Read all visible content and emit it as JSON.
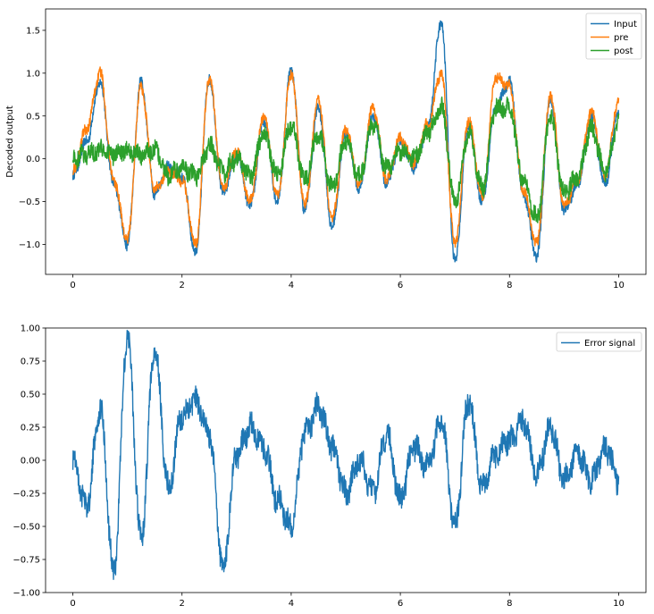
{
  "chart_data": [
    {
      "type": "line",
      "ylabel": "Decoded output",
      "xlabel": "",
      "xlim": [
        -0.5,
        10.5
      ],
      "ylim": [
        -1.35,
        1.75
      ],
      "xticks": [
        0,
        2,
        4,
        6,
        8,
        10
      ],
      "xtick_labels": [
        "0",
        "2",
        "4",
        "6",
        "8",
        "10"
      ],
      "yticks": [
        -1.0,
        -0.5,
        0.0,
        0.5,
        1.0,
        1.5
      ],
      "ytick_labels": [
        "−1.0",
        "−0.5",
        "0.0",
        "0.5",
        "1.0",
        "1.5"
      ],
      "grid": false,
      "legend": "top-right",
      "x": [
        0,
        0.25,
        0.5,
        0.75,
        1,
        1.25,
        1.5,
        1.75,
        2,
        2.25,
        2.5,
        2.75,
        3,
        3.25,
        3.5,
        3.75,
        4,
        4.25,
        4.5,
        4.75,
        5,
        5.25,
        5.5,
        5.75,
        6,
        6.25,
        6.5,
        6.75,
        7,
        7.25,
        7.5,
        7.75,
        8,
        8.25,
        8.5,
        8.75,
        9,
        9.25,
        9.5,
        9.75,
        10
      ],
      "series": [
        {
          "name": "Input",
          "color": "#1f77b4",
          "values": [
            -0.2,
            0.2,
            0.9,
            -0.3,
            -1.0,
            0.9,
            -0.4,
            -0.1,
            -0.2,
            -1.1,
            0.95,
            -0.4,
            0.05,
            -0.55,
            0.45,
            -0.5,
            1.05,
            -0.6,
            0.6,
            -0.8,
            0.3,
            -0.35,
            0.5,
            -0.3,
            0.2,
            -0.1,
            0.35,
            1.6,
            -1.2,
            0.4,
            -0.5,
            0.6,
            0.9,
            -0.4,
            -1.15,
            0.7,
            -0.6,
            -0.3,
            0.5,
            -0.3,
            0.55
          ]
        },
        {
          "name": "pre",
          "color": "#ff7f0e",
          "values": [
            -0.15,
            0.35,
            1.0,
            -0.25,
            -0.95,
            0.85,
            -0.35,
            -0.15,
            -0.25,
            -1.0,
            0.95,
            -0.35,
            0.1,
            -0.5,
            0.5,
            -0.45,
            1.0,
            -0.55,
            0.7,
            -0.7,
            0.35,
            -0.3,
            0.6,
            -0.25,
            0.25,
            -0.05,
            0.4,
            1.0,
            -1.0,
            0.45,
            -0.45,
            0.95,
            0.85,
            -0.35,
            -1.0,
            0.75,
            -0.55,
            -0.25,
            0.55,
            -0.2,
            0.7
          ]
        },
        {
          "name": "post",
          "color": "#2ca02c",
          "values": [
            0.0,
            0.05,
            0.1,
            0.05,
            0.1,
            0.05,
            0.1,
            -0.2,
            -0.1,
            -0.2,
            0.15,
            -0.15,
            0.0,
            -0.2,
            0.3,
            -0.2,
            0.4,
            -0.25,
            0.3,
            -0.35,
            0.2,
            -0.2,
            0.4,
            -0.1,
            0.1,
            0.0,
            0.3,
            0.6,
            -0.5,
            0.3,
            -0.35,
            0.6,
            0.6,
            -0.25,
            -0.7,
            0.5,
            -0.4,
            -0.2,
            0.35,
            -0.15,
            0.45
          ]
        }
      ]
    },
    {
      "type": "line",
      "xlabel": "",
      "ylabel": "",
      "xlim": [
        -0.5,
        10.5
      ],
      "ylim": [
        -1.0,
        1.0
      ],
      "xticks": [
        0,
        2,
        4,
        6,
        8,
        10
      ],
      "xtick_labels": [
        "0",
        "2",
        "4",
        "6",
        "8",
        "10"
      ],
      "yticks": [
        -1.0,
        -0.75,
        -0.5,
        -0.25,
        0.0,
        0.25,
        0.5,
        0.75,
        1.0
      ],
      "ytick_labels": [
        "−1.00",
        "−0.75",
        "−0.50",
        "−0.25",
        "0.00",
        "0.25",
        "0.50",
        "0.75",
        "1.00"
      ],
      "grid": false,
      "legend": "top-right",
      "x": [
        0,
        0.25,
        0.5,
        0.75,
        1,
        1.25,
        1.5,
        1.75,
        2,
        2.25,
        2.5,
        2.75,
        3,
        3.25,
        3.5,
        3.75,
        4,
        4.25,
        4.5,
        4.75,
        5,
        5.25,
        5.5,
        5.75,
        6,
        6.25,
        6.5,
        6.75,
        7,
        7.25,
        7.5,
        7.75,
        8,
        8.25,
        8.5,
        8.75,
        9,
        9.25,
        9.5,
        9.75,
        10
      ],
      "series": [
        {
          "name": "Error signal",
          "color": "#1f77b4",
          "values": [
            0.0,
            -0.35,
            0.4,
            -0.85,
            0.95,
            -0.6,
            0.85,
            -0.2,
            0.35,
            0.45,
            0.2,
            -0.8,
            0.05,
            0.25,
            0.1,
            -0.3,
            -0.5,
            0.2,
            0.4,
            0.1,
            -0.25,
            0.0,
            -0.25,
            0.2,
            -0.3,
            0.1,
            -0.05,
            0.3,
            -0.5,
            0.45,
            -0.2,
            0.05,
            0.15,
            0.3,
            -0.1,
            0.25,
            -0.15,
            0.05,
            -0.15,
            0.1,
            -0.15
          ]
        }
      ]
    }
  ]
}
